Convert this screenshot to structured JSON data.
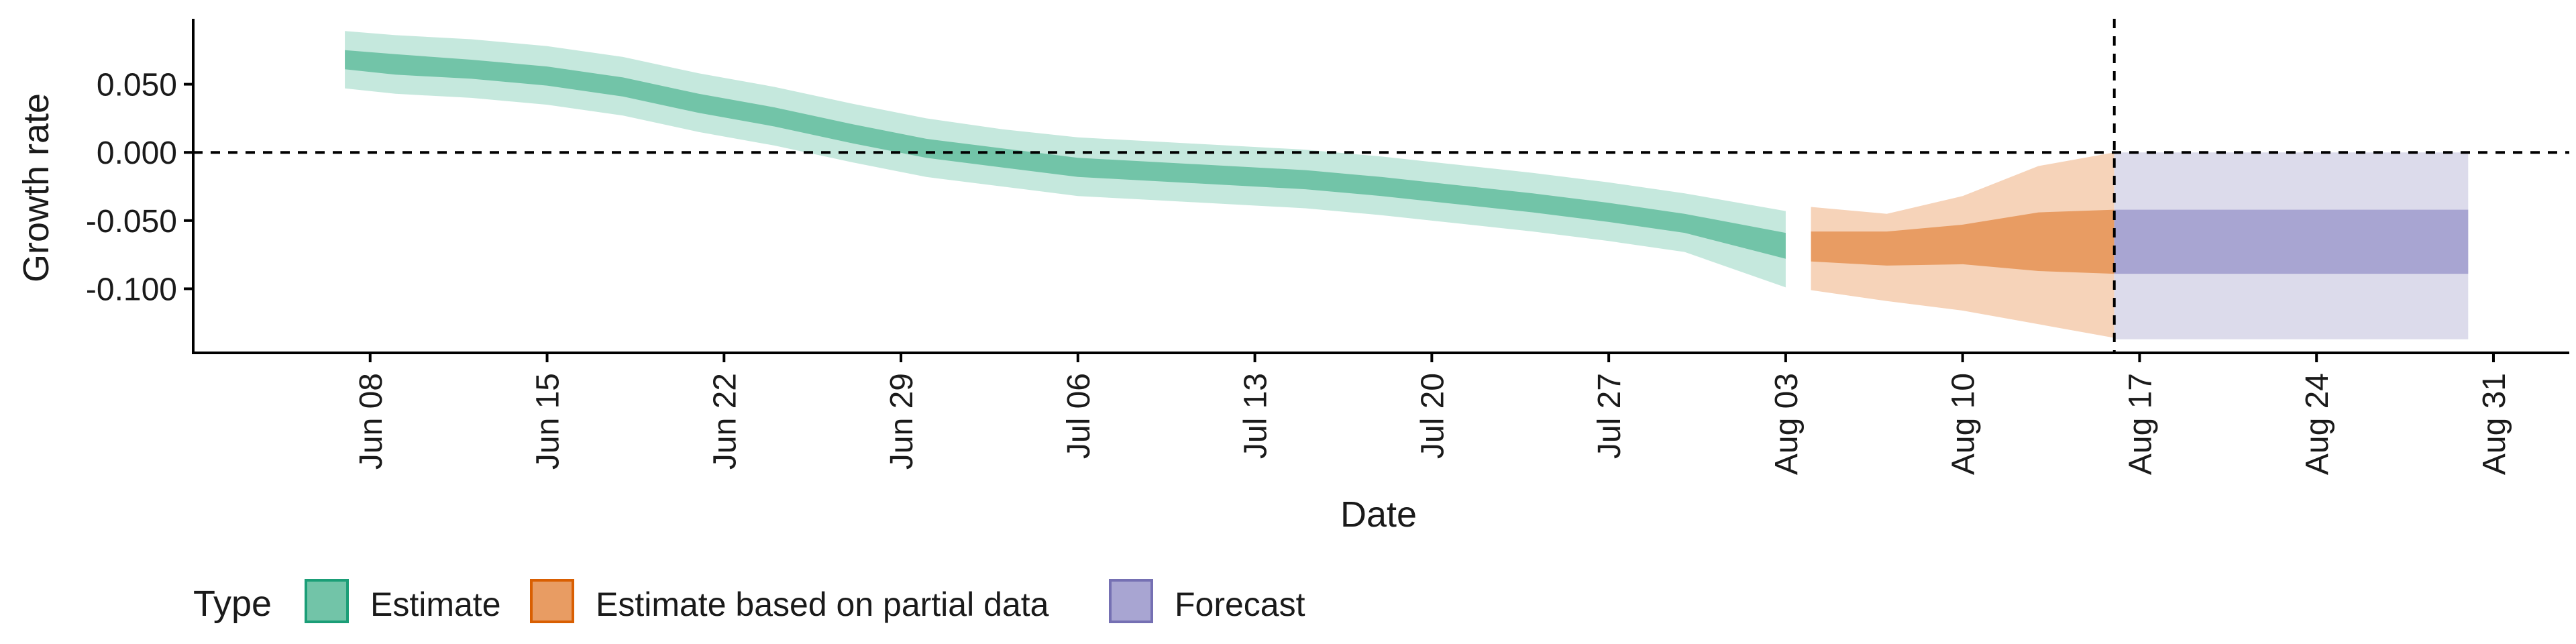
{
  "chart_data": {
    "type": "area",
    "title": "",
    "xlabel": "Date",
    "ylabel": "Growth rate",
    "x_range": [
      "2020-06-01",
      "2020-09-03"
    ],
    "ylim": [
      -0.147,
      0.098
    ],
    "x_ticks": [
      {
        "date": "2020-06-08",
        "label": "Jun 08"
      },
      {
        "date": "2020-06-15",
        "label": "Jun 15"
      },
      {
        "date": "2020-06-22",
        "label": "Jun 22"
      },
      {
        "date": "2020-06-29",
        "label": "Jun 29"
      },
      {
        "date": "2020-07-06",
        "label": "Jul 06"
      },
      {
        "date": "2020-07-13",
        "label": "Jul 13"
      },
      {
        "date": "2020-07-20",
        "label": "Jul 20"
      },
      {
        "date": "2020-07-27",
        "label": "Jul 27"
      },
      {
        "date": "2020-08-03",
        "label": "Aug 03"
      },
      {
        "date": "2020-08-10",
        "label": "Aug 10"
      },
      {
        "date": "2020-08-17",
        "label": "Aug 17"
      },
      {
        "date": "2020-08-24",
        "label": "Aug 24"
      },
      {
        "date": "2020-08-31",
        "label": "Aug 31"
      }
    ],
    "y_ticks": [
      {
        "value": 0.05,
        "label": "0.050"
      },
      {
        "value": 0.0,
        "label": "0.000"
      },
      {
        "value": -0.05,
        "label": "-0.050"
      },
      {
        "value": -0.1,
        "label": "-0.100"
      }
    ],
    "reference_lines": [
      {
        "axis": "y",
        "value": 0.0,
        "style": "dashed"
      },
      {
        "axis": "x",
        "value": "2020-08-16",
        "style": "dashed"
      }
    ],
    "grid": false,
    "legend": {
      "title": "Type",
      "position": "bottom-left"
    },
    "series": [
      {
        "name": "Estimate",
        "color": "#1b9e77",
        "fill_outer": "#c5e8dd",
        "fill_inner": "#72c4a8",
        "points": [
          {
            "x": "2020-06-07",
            "outer": [
              0.047,
              0.089
            ],
            "inner": [
              0.061,
              0.075
            ]
          },
          {
            "x": "2020-06-09",
            "outer": [
              0.043,
              0.086
            ],
            "inner": [
              0.057,
              0.072
            ]
          },
          {
            "x": "2020-06-12",
            "outer": [
              0.04,
              0.083
            ],
            "inner": [
              0.054,
              0.068
            ]
          },
          {
            "x": "2020-06-15",
            "outer": [
              0.035,
              0.078
            ],
            "inner": [
              0.049,
              0.063
            ]
          },
          {
            "x": "2020-06-18",
            "outer": [
              0.027,
              0.07
            ],
            "inner": [
              0.041,
              0.055
            ]
          },
          {
            "x": "2020-06-21",
            "outer": [
              0.015,
              0.058
            ],
            "inner": [
              0.029,
              0.043
            ]
          },
          {
            "x": "2020-06-24",
            "outer": [
              0.005,
              0.048
            ],
            "inner": [
              0.019,
              0.033
            ]
          },
          {
            "x": "2020-06-27",
            "outer": [
              -0.007,
              0.036
            ],
            "inner": [
              0.007,
              0.021
            ]
          },
          {
            "x": "2020-06-30",
            "outer": [
              -0.018,
              0.025
            ],
            "inner": [
              -0.004,
              0.01
            ]
          },
          {
            "x": "2020-07-03",
            "outer": [
              -0.025,
              0.017
            ],
            "inner": [
              -0.011,
              0.003
            ]
          },
          {
            "x": "2020-07-06",
            "outer": [
              -0.032,
              0.011
            ],
            "inner": [
              -0.018,
              -0.004
            ]
          },
          {
            "x": "2020-07-09",
            "outer": [
              -0.035,
              0.008
            ],
            "inner": [
              -0.021,
              -0.007
            ]
          },
          {
            "x": "2020-07-12",
            "outer": [
              -0.038,
              0.005
            ],
            "inner": [
              -0.024,
              -0.01
            ]
          },
          {
            "x": "2020-07-15",
            "outer": [
              -0.041,
              0.002
            ],
            "inner": [
              -0.027,
              -0.013
            ]
          },
          {
            "x": "2020-07-18",
            "outer": [
              -0.046,
              -0.003
            ],
            "inner": [
              -0.032,
              -0.018
            ]
          },
          {
            "x": "2020-07-21",
            "outer": [
              -0.052,
              -0.009
            ],
            "inner": [
              -0.038,
              -0.024
            ]
          },
          {
            "x": "2020-07-24",
            "outer": [
              -0.058,
              -0.015
            ],
            "inner": [
              -0.044,
              -0.03
            ]
          },
          {
            "x": "2020-07-27",
            "outer": [
              -0.065,
              -0.022
            ],
            "inner": [
              -0.051,
              -0.037
            ]
          },
          {
            "x": "2020-07-30",
            "outer": [
              -0.073,
              -0.03
            ],
            "inner": [
              -0.059,
              -0.045
            ]
          },
          {
            "x": "2020-08-03",
            "outer": [
              -0.099,
              -0.043
            ],
            "inner": [
              -0.078,
              -0.059
            ]
          }
        ]
      },
      {
        "name": "Estimate based on partial data",
        "color": "#d95f02",
        "fill_outer": "#f6d3b9",
        "fill_inner": "#e89c63",
        "points": [
          {
            "x": "2020-08-04",
            "outer": [
              -0.101,
              -0.04
            ],
            "inner": [
              -0.08,
              -0.058
            ]
          },
          {
            "x": "2020-08-07",
            "outer": [
              -0.109,
              -0.045
            ],
            "inner": [
              -0.083,
              -0.058
            ]
          },
          {
            "x": "2020-08-10",
            "outer": [
              -0.116,
              -0.032
            ],
            "inner": [
              -0.082,
              -0.053
            ]
          },
          {
            "x": "2020-08-13",
            "outer": [
              -0.126,
              -0.01
            ],
            "inner": [
              -0.087,
              -0.044
            ]
          },
          {
            "x": "2020-08-16",
            "outer": [
              -0.136,
              0.0
            ],
            "inner": [
              -0.089,
              -0.042
            ]
          }
        ]
      },
      {
        "name": "Forecast",
        "color": "#7570b3",
        "fill_outer": "#dcdbeb",
        "fill_inner": "#a8a5d2",
        "points": [
          {
            "x": "2020-08-16",
            "outer": [
              -0.137,
              0.0
            ],
            "inner": [
              -0.089,
              -0.042
            ]
          },
          {
            "x": "2020-08-30",
            "outer": [
              -0.137,
              0.0
            ],
            "inner": [
              -0.089,
              -0.042
            ]
          }
        ]
      }
    ]
  }
}
